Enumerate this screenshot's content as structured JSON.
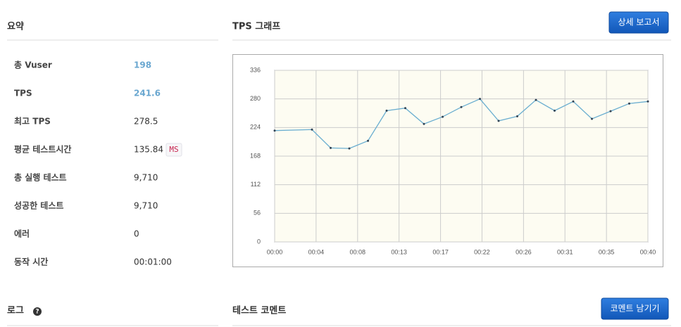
{
  "summary": {
    "title": "요약",
    "rows": [
      {
        "label": "총 Vuser",
        "value": "198"
      },
      {
        "label": "TPS",
        "value": "241.6"
      },
      {
        "label": "최고 TPS",
        "value": "278.5"
      },
      {
        "label": "평균 테스트시간",
        "value": "135.84",
        "unit": "MS"
      },
      {
        "label": "총 실행 테스트",
        "value": "9,710"
      },
      {
        "label": "성공한 테스트",
        "value": "9,710"
      },
      {
        "label": "에러",
        "value": "0"
      },
      {
        "label": "동작 시간",
        "value": "00:01:00"
      }
    ]
  },
  "tps_graph": {
    "title": "TPS 그래프",
    "button": "상세 보고서"
  },
  "chart_data": {
    "type": "line",
    "x": [
      0,
      4,
      6,
      8,
      10,
      12,
      14,
      16,
      18,
      20,
      22,
      24,
      26,
      28,
      30,
      32,
      34,
      36,
      38,
      40
    ],
    "values": [
      218,
      220,
      184,
      183,
      198,
      257,
      262,
      231,
      245,
      264,
      280,
      237,
      246,
      278,
      257,
      275,
      241,
      256,
      271,
      275
    ],
    "color": "#6aaed0",
    "xlim": [
      0,
      40
    ],
    "xticks": [
      {
        "value": 0,
        "label": "00:00"
      },
      {
        "value": 4.44,
        "label": "00:04"
      },
      {
        "value": 8.89,
        "label": "00:08"
      },
      {
        "value": 13.33,
        "label": "00:13"
      },
      {
        "value": 17.78,
        "label": "00:17"
      },
      {
        "value": 22.22,
        "label": "00:22"
      },
      {
        "value": 26.67,
        "label": "00:26"
      },
      {
        "value": 31.11,
        "label": "00:31"
      },
      {
        "value": 35.56,
        "label": "00:35"
      },
      {
        "value": 40,
        "label": "00:40"
      }
    ],
    "ylim": [
      0,
      336
    ],
    "yticks": [
      0,
      56,
      112,
      168,
      224,
      280,
      336
    ],
    "grid": true
  },
  "log": {
    "title": "로그",
    "help": "?"
  },
  "comment": {
    "title": "테스트 코멘트",
    "button": "코멘트 남기기"
  }
}
